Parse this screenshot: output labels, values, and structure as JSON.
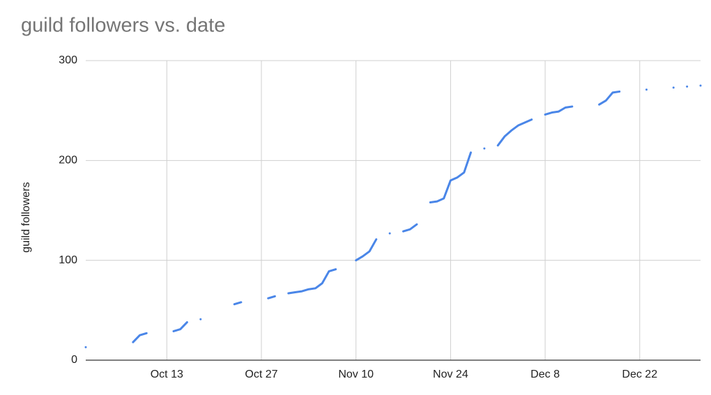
{
  "chart_data": {
    "type": "line",
    "title": "guild followers vs. date",
    "y_label": "guild followers",
    "color": "#4a86e8",
    "grid": true,
    "ylim": [
      0,
      300
    ],
    "yticks": [
      0,
      100,
      200,
      300
    ],
    "categories": [
      null,
      null,
      null,
      null,
      null,
      null,
      null,
      null,
      null,
      null,
      null,
      null,
      "Oct 13",
      null,
      null,
      null,
      null,
      null,
      null,
      null,
      null,
      null,
      null,
      null,
      null,
      null,
      "Oct 27",
      null,
      null,
      null,
      null,
      null,
      null,
      null,
      null,
      null,
      null,
      null,
      null,
      null,
      "Nov 10",
      null,
      null,
      null,
      null,
      null,
      null,
      null,
      null,
      null,
      null,
      null,
      null,
      null,
      "Nov 24",
      null,
      null,
      null,
      null,
      null,
      null,
      null,
      null,
      null,
      null,
      null,
      null,
      null,
      "Dec 8",
      null,
      null,
      null,
      null,
      null,
      null,
      null,
      null,
      null,
      null,
      null,
      null,
      null,
      "Dec 22",
      null,
      null,
      null,
      null,
      null,
      null,
      null,
      null,
      null
    ],
    "values": [
      13,
      null,
      null,
      null,
      null,
      null,
      null,
      18,
      25,
      27,
      null,
      null,
      null,
      29,
      31,
      38,
      null,
      41,
      null,
      null,
      null,
      null,
      56,
      58,
      null,
      null,
      null,
      62,
      64,
      null,
      67,
      68,
      69,
      71,
      72,
      77,
      89,
      91,
      null,
      null,
      100,
      104,
      109,
      121,
      null,
      127,
      null,
      129,
      131,
      136,
      null,
      158,
      159,
      162,
      180,
      183,
      188,
      208,
      null,
      212,
      null,
      215,
      224,
      230,
      235,
      238,
      241,
      null,
      246,
      248,
      249,
      253,
      254,
      null,
      null,
      null,
      256,
      260,
      268,
      269,
      null,
      null,
      null,
      271,
      null,
      null,
      null,
      273,
      null,
      274,
      null,
      275
    ]
  }
}
